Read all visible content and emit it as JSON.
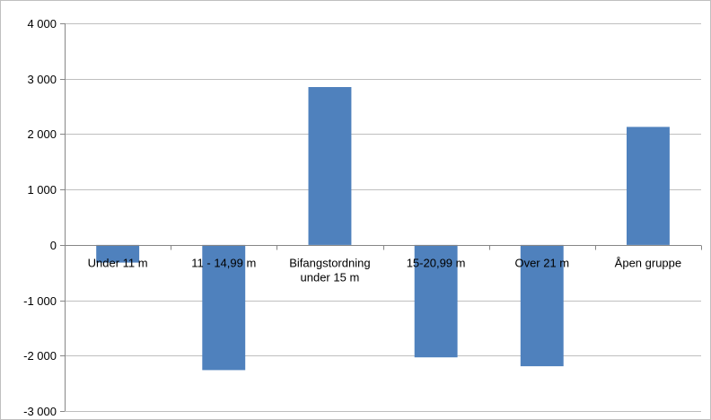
{
  "chart_data": {
    "type": "bar",
    "categories": [
      "Under 11 m",
      "11 - 14,99 m",
      "Bifangstordning under 15 m",
      "15-20,99 m",
      "Over 21 m",
      "Åpen gruppe"
    ],
    "category_lines": [
      [
        "Under 11 m"
      ],
      [
        "11 - 14,99 m"
      ],
      [
        "Bifangstordning",
        "under 15 m"
      ],
      [
        "15-20,99 m"
      ],
      [
        "Over 21 m"
      ],
      [
        "Åpen gruppe"
      ]
    ],
    "values": [
      -320,
      -2260,
      2850,
      -2030,
      -2190,
      2130
    ],
    "ylim": [
      -3000,
      4000
    ],
    "yticks": [
      4000,
      3000,
      2000,
      1000,
      0,
      -1000,
      -2000,
      -3000
    ],
    "ytick_labels": [
      "4 000",
      "3 000",
      "2 000",
      "1 000",
      "0",
      "-1 000",
      "-2 000",
      "-3 000"
    ],
    "grid": true,
    "bar_color": "#4f81bd",
    "grid_color": "#bfbfbf"
  }
}
